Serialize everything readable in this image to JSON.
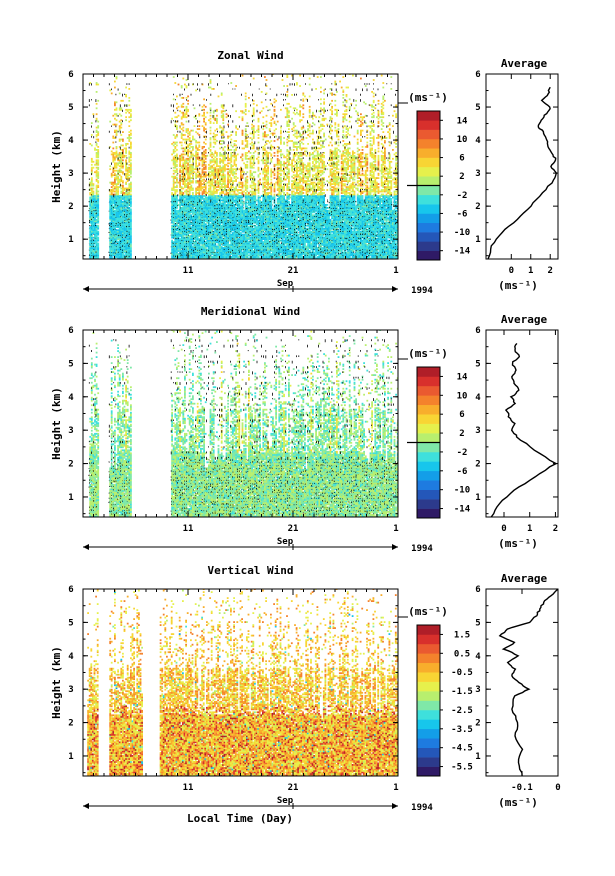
{
  "figure": {
    "xlabel": "Local Time (Day)",
    "month_label": "Sep",
    "year_label": "1994",
    "x_tick_labels": [
      "11",
      "21",
      "1"
    ],
    "height_ticks": [
      1,
      2,
      3,
      4,
      5,
      6
    ],
    "unit_label": "(ms⁻¹)",
    "average_title": "Average"
  },
  "chart_data": [
    {
      "type": "heatmap",
      "title": "Zonal Wind",
      "ylabel": "Height (km)",
      "ylim": [
        0.4,
        6.0
      ],
      "xlim_days": [
        1,
        31
      ],
      "x_ticks": [
        11,
        21,
        31
      ],
      "data_periods_days": [
        [
          1.6,
          2.4
        ],
        [
          3.5,
          5.5
        ],
        [
          9.4,
          31
        ]
      ],
      "colorbar": {
        "ticks": [
          14,
          10,
          6,
          2,
          -2,
          -6,
          -10,
          -14
        ],
        "range": [
          -16,
          16
        ]
      },
      "average_profile": {
        "title": "Average",
        "xlabel": "(ms⁻¹)",
        "xlim": [
          -1.3,
          2.4
        ],
        "x_ticks": [
          0,
          1,
          2
        ],
        "height": [
          0.4,
          0.8,
          1.2,
          1.6,
          2.0,
          2.4,
          2.8,
          3.0,
          3.2,
          3.4,
          3.6,
          3.8,
          4.0,
          4.2,
          4.4,
          4.6,
          4.8,
          5.0,
          5.2,
          5.4,
          5.6
        ],
        "value": [
          -1.2,
          -1.0,
          -0.5,
          0.3,
          1.0,
          1.6,
          2.2,
          2.3,
          2.0,
          2.3,
          2.1,
          1.9,
          1.8,
          1.7,
          1.4,
          1.5,
          1.8,
          2.0,
          1.6,
          1.9,
          2.0
        ]
      }
    },
    {
      "type": "heatmap",
      "title": "Meridional Wind",
      "ylabel": "Height (km)",
      "ylim": [
        0.4,
        6.0
      ],
      "xlim_days": [
        1,
        31
      ],
      "x_ticks": [
        11,
        21,
        31
      ],
      "data_periods_days": [
        [
          1.6,
          2.4
        ],
        [
          3.5,
          5.5
        ],
        [
          9.4,
          31
        ]
      ],
      "colorbar": {
        "ticks": [
          14,
          10,
          6,
          2,
          -2,
          -6,
          -10,
          -14
        ],
        "range": [
          -16,
          16
        ]
      },
      "average_profile": {
        "title": "Average",
        "xlabel": "(ms⁻¹)",
        "xlim": [
          -0.7,
          2.1
        ],
        "x_ticks": [
          0,
          1,
          2
        ],
        "height": [
          0.4,
          0.8,
          1.2,
          1.6,
          2.0,
          2.4,
          2.8,
          3.0,
          3.2,
          3.4,
          3.6,
          3.8,
          4.0,
          4.2,
          4.4,
          4.6,
          4.8,
          5.0,
          5.2,
          5.4,
          5.6
        ],
        "value": [
          -0.5,
          -0.2,
          0.4,
          1.2,
          2.0,
          1.2,
          0.5,
          0.3,
          0.4,
          0.2,
          0.1,
          0.4,
          0.3,
          0.6,
          0.4,
          0.3,
          0.5,
          0.3,
          0.6,
          0.4,
          0.5
        ]
      }
    },
    {
      "type": "heatmap",
      "title": "Vertical Wind",
      "ylabel": "Height (km)",
      "ylim": [
        0.4,
        6.0
      ],
      "xlim_days": [
        1,
        31
      ],
      "x_ticks": [
        11,
        21,
        31
      ],
      "data_periods_days": [
        [
          1.4,
          2.4
        ],
        [
          3.5,
          6.6
        ],
        [
          8.3,
          31
        ]
      ],
      "colorbar": {
        "ticks": [
          1.5,
          0.5,
          -0.5,
          -1.5,
          -2.5,
          -3.5,
          -4.5,
          -5.5
        ],
        "range": [
          -6,
          2
        ]
      },
      "average_profile": {
        "title": "Average",
        "xlabel": "(ms⁻¹)",
        "xlim": [
          -0.2,
          0.0
        ],
        "x_ticks": [
          -0.1,
          0.0
        ],
        "height": [
          0.4,
          0.8,
          1.2,
          1.6,
          2.0,
          2.4,
          2.8,
          3.0,
          3.2,
          3.4,
          3.6,
          3.8,
          4.0,
          4.2,
          4.4,
          4.6,
          4.8,
          5.0,
          5.2,
          5.4,
          5.6,
          5.8,
          6.0
        ],
        "value": [
          -0.1,
          -0.11,
          -0.1,
          -0.12,
          -0.11,
          -0.13,
          -0.12,
          -0.08,
          -0.11,
          -0.13,
          -0.12,
          -0.14,
          -0.11,
          -0.15,
          -0.12,
          -0.16,
          -0.14,
          -0.08,
          -0.06,
          -0.05,
          -0.04,
          -0.02,
          0.0
        ]
      }
    }
  ]
}
